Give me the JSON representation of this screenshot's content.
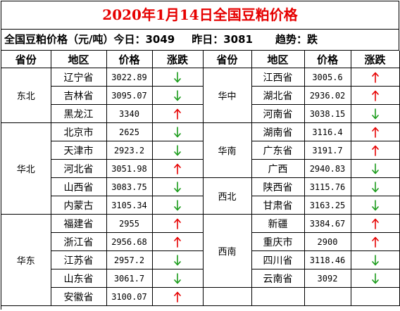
{
  "title": "2020年1月14日全国豆粕价格",
  "summary": {
    "today_label": "全国豆粕价格（元/吨）今日：",
    "today_value": "3049",
    "yesterday_label": "昨日：",
    "yesterday_value": "3081",
    "trend_label": "趋势：",
    "trend_value": "跌"
  },
  "headers": [
    "省份",
    "地区",
    "价格",
    "涨跌"
  ],
  "colors": {
    "up": "#e60000",
    "down": "#1a9b1a",
    "title": "#e60000"
  },
  "left": [
    {
      "region": "东北",
      "rows": [
        {
          "province": "辽宁省",
          "price": "3022.89",
          "trend": "down"
        },
        {
          "province": "吉林省",
          "price": "3095.07",
          "trend": "down"
        },
        {
          "province": "黑龙江",
          "price": "3340",
          "trend": "up"
        }
      ]
    },
    {
      "region": "华北",
      "rows": [
        {
          "province": "北京市",
          "price": "2625",
          "trend": "down"
        },
        {
          "province": "天津市",
          "price": "2923.2",
          "trend": "down"
        },
        {
          "province": "河北省",
          "price": "3051.98",
          "trend": "up"
        },
        {
          "province": "山西省",
          "price": "3083.75",
          "trend": "down"
        },
        {
          "province": "内蒙古",
          "price": "3105.34",
          "trend": "down"
        }
      ]
    },
    {
      "region": "华东",
      "rows": [
        {
          "province": "福建省",
          "price": "2955",
          "trend": "up"
        },
        {
          "province": "浙江省",
          "price": "2956.68",
          "trend": "up"
        },
        {
          "province": "江苏省",
          "price": "2957.2",
          "trend": "down"
        },
        {
          "province": "山东省",
          "price": "3061.7",
          "trend": "down"
        },
        {
          "province": "安徽省",
          "price": "3100.07",
          "trend": "up"
        }
      ]
    }
  ],
  "right": [
    {
      "region": "华中",
      "rows": [
        {
          "province": "江西省",
          "price": "3005.6",
          "trend": "up"
        },
        {
          "province": "湖北省",
          "price": "2936.02",
          "trend": "up"
        },
        {
          "province": "河南省",
          "price": "3038.15",
          "trend": "down"
        }
      ]
    },
    {
      "region": "华南",
      "rows": [
        {
          "province": "湖南省",
          "price": "3116.4",
          "trend": "up"
        },
        {
          "province": "广东省",
          "price": "3191.7",
          "trend": "up"
        },
        {
          "province": "广西",
          "price": "2940.83",
          "trend": "down"
        }
      ]
    },
    {
      "region": "西北",
      "rows": [
        {
          "province": "陕西省",
          "price": "3115.76",
          "trend": "down"
        },
        {
          "province": "甘肃省",
          "price": "3163.25",
          "trend": "down"
        }
      ]
    },
    {
      "region": "西南",
      "rows": [
        {
          "province": "新疆",
          "price": "3384.67",
          "trend": "up"
        },
        {
          "province": "重庆市",
          "price": "2900",
          "trend": "up"
        },
        {
          "province": "四川省",
          "price": "3118.46",
          "trend": "down"
        },
        {
          "province": "云南省",
          "price": "3092",
          "trend": "down"
        }
      ]
    }
  ]
}
